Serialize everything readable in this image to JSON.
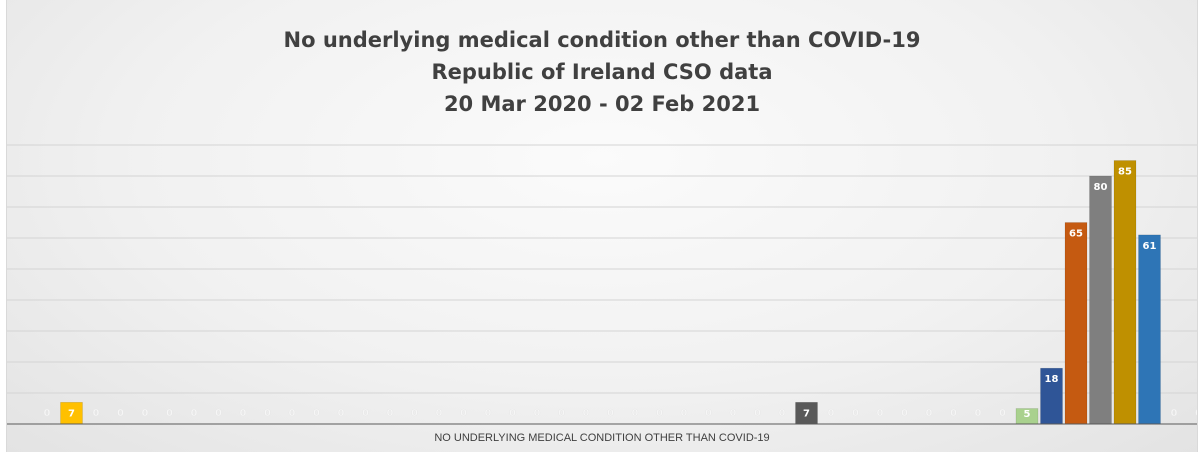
{
  "chart_data": {
    "type": "bar",
    "title_lines": [
      "No underlying medical condition other than COVID-19",
      "Republic of Ireland CSO data",
      "20 Mar 2020 - 02 Feb 2021"
    ],
    "xlabel": "NO UNDERLYING MEDICAL CONDITION OTHER THAN COVID-19",
    "ylabel": "",
    "ylim": [
      0,
      90
    ],
    "grid": true,
    "values": [
      0,
      7,
      0,
      0,
      0,
      0,
      0,
      0,
      0,
      0,
      0,
      0,
      0,
      0,
      0,
      0,
      0,
      0,
      0,
      0,
      0,
      0,
      0,
      0,
      0,
      0,
      0,
      0,
      0,
      0,
      0,
      7,
      0,
      0,
      0,
      0,
      0,
      0,
      0,
      0,
      5,
      18,
      65,
      80,
      85,
      61,
      0,
      0
    ],
    "colors": [
      "#4472c4",
      "#ffc000",
      "#5b9bd5",
      "#ed7d31",
      "#a5a5a5",
      "#ffc000",
      "#4472c4",
      "#70ad47",
      "#264478",
      "#9e480e",
      "#636363",
      "#997300",
      "#255e91",
      "#43682b",
      "#698ed0",
      "#f1975a",
      "#b7b7b7",
      "#ffcd33",
      "#7cafdd",
      "#8cc168",
      "#4472c4",
      "#ed7d31",
      "#a5a5a5",
      "#ffc000",
      "#5b9bd5",
      "#70ad47",
      "#264478",
      "#9e480e",
      "#636363",
      "#997300",
      "#255e91",
      "#595959",
      "#43682b",
      "#698ed0",
      "#f1975a",
      "#b7b7b7",
      "#ffcd33",
      "#7cafdd",
      "#8cc168",
      "#4472c4",
      "#a9d18e",
      "#2f5597",
      "#c55a11",
      "#7f7f7f",
      "#bf9000",
      "#2e75b6",
      "#548235",
      "#4472c4"
    ]
  }
}
